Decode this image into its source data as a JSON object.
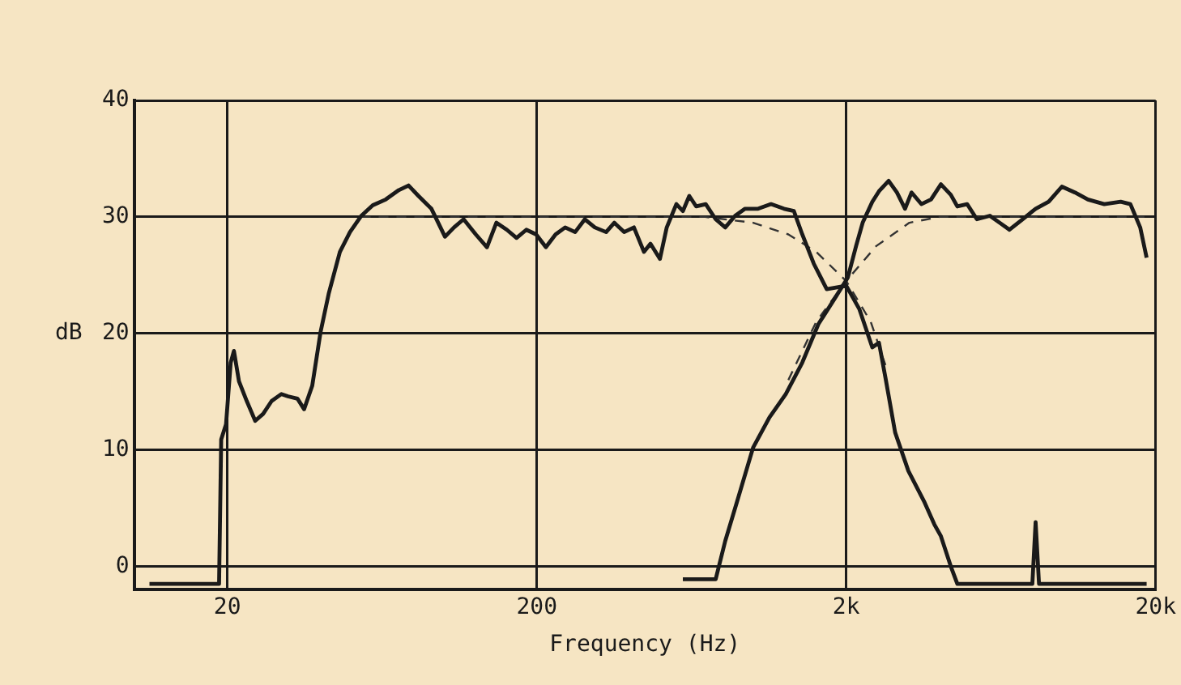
{
  "chart_data": {
    "type": "line",
    "xlabel": "Frequency (Hz)",
    "ylabel": "dB",
    "log": "x",
    "xlim": [
      10,
      20000
    ],
    "xticks": [
      20,
      200,
      {
        "value": 2000,
        "label": "2k"
      },
      {
        "value": 20000,
        "label": "20k"
      }
    ],
    "ylim": [
      -2,
      40
    ],
    "yticks": [
      0,
      10,
      20,
      30,
      40
    ],
    "grid": true,
    "legend": false,
    "marker": "none",
    "series": [
      {
        "color": "#1a1a1a",
        "line_style": "solid",
        "x": [
          11.2,
          18.8,
          19.1,
          19.8,
          20.5,
          21.0,
          21.8,
          23.1,
          24.6,
          26.1,
          27.8,
          29.9,
          31.4,
          33.7,
          35.4,
          37.6,
          40.0,
          42.5,
          46.2,
          49.8,
          54.2,
          59.0,
          65.0,
          71.6,
          77.0,
          82.9,
          91.3,
          101,
          108,
          116,
          127,
          138,
          148,
          160,
          172,
          185,
          199,
          214,
          230,
          247,
          266,
          286,
          308,
          335,
          356,
          383,
          412,
          444,
          466,
          500,
          526,
          565,
          593,
          622,
          655,
          703,
          757,
          813,
          875,
          942,
          1038,
          1143,
          1259,
          1355,
          1442,
          1570,
          1730,
          2000,
          2204,
          2428,
          2552,
          2678,
          2878,
          3176,
          3582,
          3855,
          4046,
          4356,
          4572,
          7990,
          8186,
          8396,
          18700
        ],
        "values": [
          -1.5,
          -1.5,
          10.9,
          12.2,
          17.5,
          18.5,
          15.9,
          14.2,
          12.5,
          13.1,
          14.2,
          14.8,
          14.6,
          14.4,
          13.5,
          15.5,
          20.1,
          23.4,
          27.0,
          28.7,
          30.1,
          31.0,
          31.5,
          32.3,
          32.7,
          31.8,
          30.7,
          28.3,
          29.1,
          29.8,
          28.5,
          27.4,
          29.5,
          28.9,
          28.2,
          28.9,
          28.5,
          27.4,
          28.5,
          29.1,
          28.7,
          29.8,
          29.1,
          28.7,
          29.5,
          28.7,
          29.1,
          27.0,
          27.7,
          26.4,
          29.1,
          31.1,
          30.5,
          31.8,
          30.9,
          31.1,
          29.8,
          29.1,
          30.1,
          30.7,
          30.7,
          31.1,
          30.7,
          30.5,
          28.5,
          26.0,
          23.8,
          24.1,
          22.1,
          18.8,
          19.2,
          16.2,
          11.5,
          8.2,
          5.5,
          3.6,
          2.6,
          0,
          -1.5,
          -1.5,
          3.8,
          -1.5,
          -1.5
        ]
      },
      {
        "color": "#1a1a1a",
        "line_style": "solid",
        "x": [
          593,
          757,
          813,
          886,
          1000,
          1130,
          1276,
          1442,
          1626,
          1836,
          2024,
          2152,
          2260,
          2428,
          2552,
          2742,
          2916,
          3098,
          3252,
          3498,
          3758,
          4046,
          4356,
          4572,
          4918,
          5288,
          5824,
          6266,
          6740,
          7430,
          8186,
          9020,
          9954,
          10966,
          12078,
          13646,
          15418,
          16570,
          17826,
          18700
        ],
        "values": [
          -1.1,
          -1.1,
          2.2,
          5.5,
          10.2,
          12.8,
          14.8,
          17.5,
          20.8,
          23.0,
          24.8,
          27.5,
          29.5,
          31.3,
          32.2,
          33.1,
          32.1,
          30.7,
          32.1,
          31.1,
          31.5,
          32.8,
          31.9,
          30.9,
          31.1,
          29.8,
          30.1,
          29.5,
          28.9,
          29.8,
          30.7,
          31.3,
          32.6,
          32.1,
          31.5,
          31.1,
          31.3,
          31.1,
          29.1,
          26.5
        ]
      },
      {
        "color": "#333333",
        "line_style": "dashed",
        "x": [
          54,
          700,
          1000,
          1300,
          1600,
          2000,
          2400,
          2700
        ],
        "values": [
          30,
          30,
          29.5,
          28.5,
          27,
          24.5,
          21,
          17
        ]
      },
      {
        "color": "#333333",
        "line_style": "dashed",
        "x": [
          1300,
          1600,
          2000,
          2500,
          3200,
          4000,
          18700
        ],
        "values": [
          16,
          21,
          24.5,
          27.5,
          29.5,
          30,
          30
        ]
      }
    ]
  }
}
